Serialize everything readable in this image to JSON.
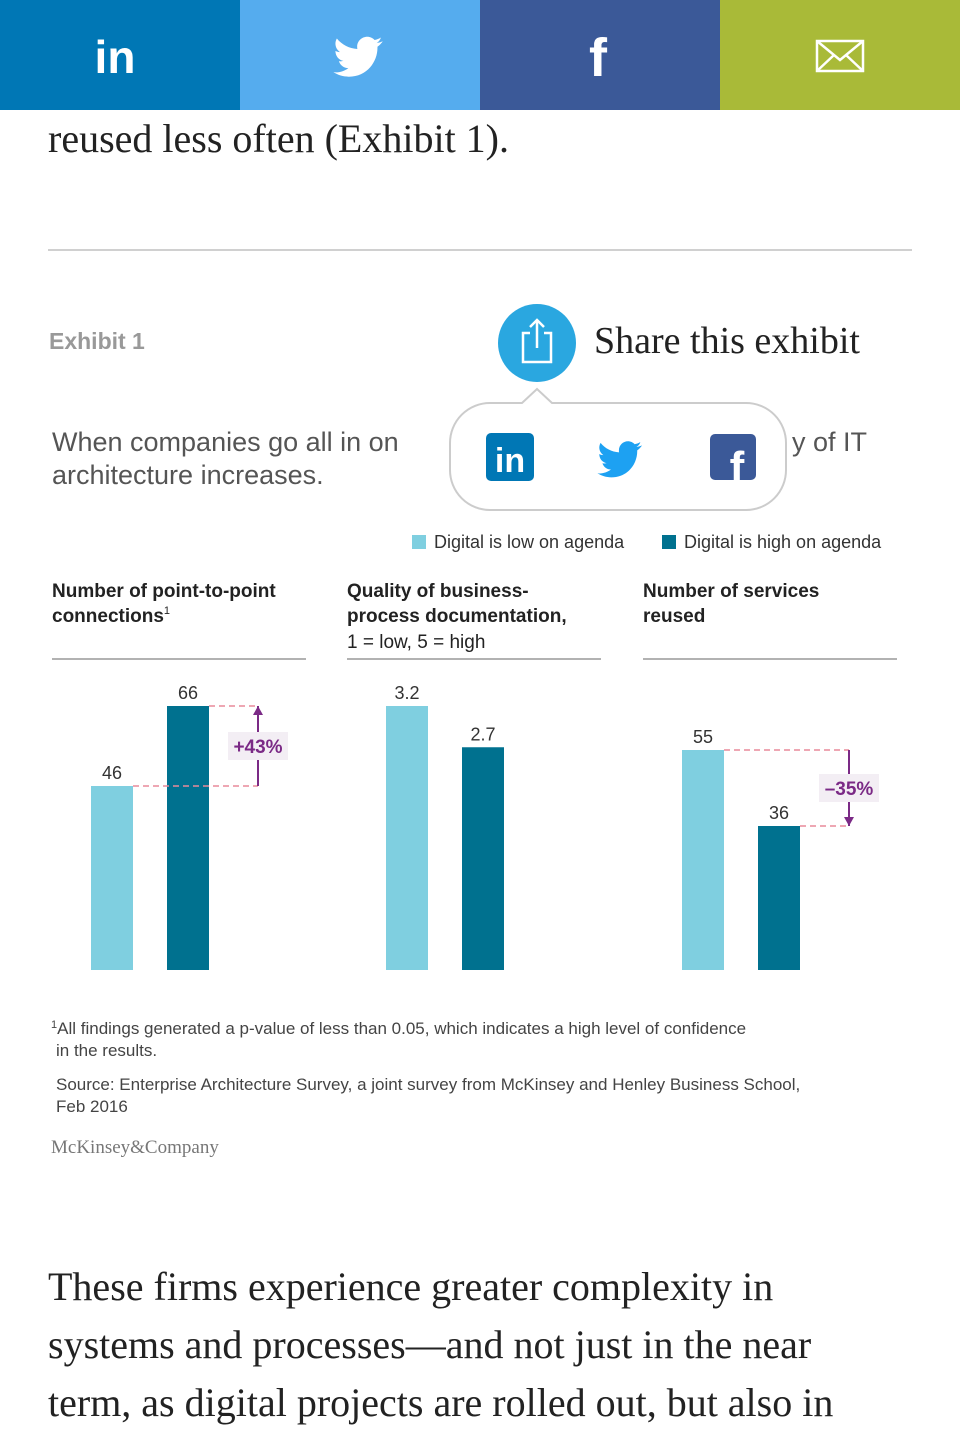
{
  "share_icons": {
    "linkedin": "in",
    "facebook": "f"
  },
  "article": {
    "intro_line": "reused less often (Exhibit 1).",
    "body_lines": [
      "These firms experience greater complexity in",
      "systems and processes—and not just in the near",
      "term, as digital projects are rolled out, but also in"
    ]
  },
  "exhibit": {
    "label": "Exhibit 1",
    "share_label": "Share this exhibit",
    "title_lines": [
      "When companies go all in on",
      "y of IT",
      "architecture increases."
    ],
    "legend": [
      {
        "name": "Digital is low on agenda",
        "color": "#7fcfe0"
      },
      {
        "name": "Digital is high on agenda",
        "color": "#00718f"
      }
    ],
    "footnote_mark": "1",
    "footnote_lines": [
      "All findings generated a p-value of less than 0.05, which indicates a high level of confidence",
      "in the results."
    ],
    "source_lines": [
      "Source: Enterprise Architecture Survey, a joint survey from McKinsey and Henley Business School,",
      "Feb 2016"
    ],
    "brand": "McKinsey&Company"
  },
  "chart_data": [
    {
      "type": "bar",
      "title_lines": [
        "Number of point-to-point",
        "connections"
      ],
      "title_note": "1",
      "values": [
        46,
        66
      ],
      "ylim": [
        0,
        66
      ],
      "annotation": "+43%"
    },
    {
      "type": "bar",
      "title_lines": [
        "Quality of business-",
        "process documentation,"
      ],
      "subtitle": "1 = low, 5 = high",
      "values": [
        3.2,
        2.7
      ],
      "ylim": [
        0,
        3.2
      ]
    },
    {
      "type": "bar",
      "title_lines": [
        "Number of services",
        "reused"
      ],
      "values": [
        55,
        36
      ],
      "ylim": [
        0,
        66
      ],
      "annotation": "–35%"
    }
  ]
}
